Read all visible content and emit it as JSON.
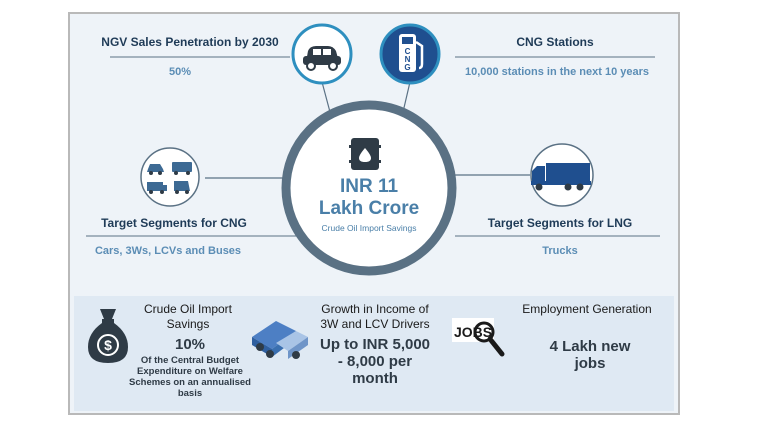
{
  "center": {
    "title_line1": "INR 11",
    "title_line2": "Lakh Crore",
    "subtitle": "Crude Oil Import Savings",
    "icon": "oil-barrel-icon"
  },
  "ngv": {
    "heading": "NGV Sales Penetration by 2030",
    "value": "50%",
    "icon": "car-icon"
  },
  "cng_stations": {
    "heading": "CNG Stations",
    "value": "10,000 stations in the next 10 years",
    "icon": "cng-pump-icon",
    "icon_text": "CNG"
  },
  "cng_segments": {
    "heading": "Target Segments for CNG",
    "value": "Cars, 3Ws, LCVs and Buses",
    "icon": "vehicles-icon"
  },
  "lng_segments": {
    "heading": "Target Segments for LNG",
    "value": "Trucks",
    "icon": "truck-icon"
  },
  "crude_savings": {
    "heading": "Crude Oil Import Savings",
    "value": "10%",
    "detail": "Of the Central Budget Expenditure on Welfare Schemes on an annualised basis",
    "icon": "money-bag-icon"
  },
  "income_growth": {
    "heading": "Growth in Income of 3W and LCV Drivers",
    "value": "Up to INR 5,000 - 8,000 per month",
    "icon": "toy-vehicles-icon"
  },
  "employment": {
    "heading": "Employment Generation",
    "value": "4 Lakh new jobs",
    "icon": "jobs-search-icon",
    "icon_text": "JOBS"
  },
  "colors": {
    "ring": "#5a7184",
    "accent": "#4a7fa8",
    "dark": "#1f3b57",
    "icon_ring": "#2e8fbf"
  }
}
